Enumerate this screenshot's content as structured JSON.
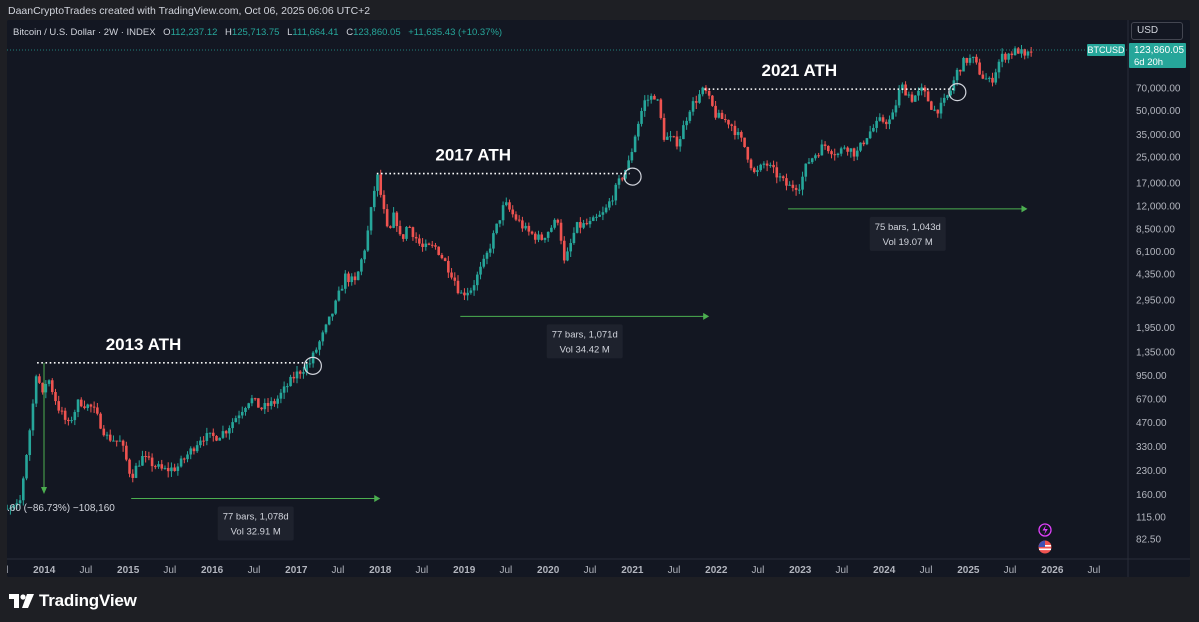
{
  "credit": "DaanCryptoTrades created with TradingView.com, Oct 06, 2025 06:06 UTC+2",
  "legend": {
    "symbol": "Bitcoin / U.S. Dollar · 2W · INDEX",
    "o_label": "O",
    "o_value": "112,237.12",
    "h_label": "H",
    "h_value": "125,713.75",
    "l_label": "L",
    "l_value": "111,664.41",
    "c_label": "C",
    "c_value": "123,860.05",
    "change": "+11,635.43 (+10.37%)"
  },
  "currency": "USD",
  "price_tag": {
    "symbol": "BTCUSD",
    "price": "123,860.05",
    "countdown": "6d 20h"
  },
  "colors": {
    "up": "#26a69a",
    "down": "#ef5350",
    "background": "#131722",
    "arrow": "#4caf50"
  },
  "branding": {
    "name": "TradingView",
    "icon": "tradingview-logo-icon"
  },
  "chart_data": {
    "type": "candlestick",
    "interval": "2W",
    "y_scale": "log",
    "ylim": [
      65,
      140000
    ],
    "y_ticks": [
      "123,860.05",
      "70,000.00",
      "50,000.00",
      "35,000.00",
      "25,000.00",
      "17,000.00",
      "12,000.00",
      "8,500.00",
      "6,100.00",
      "4,350.00",
      "2,950.00",
      "1,950.00",
      "1,350.00",
      "950.00",
      "670.00",
      "470.00",
      "330.00",
      "230.00",
      "160.00",
      "115.00",
      "82.50"
    ],
    "x_ticks": [
      "Jul",
      "2014",
      "Jul",
      "2015",
      "Jul",
      "2016",
      "Jul",
      "2017",
      "Jul",
      "2018",
      "Jul",
      "2019",
      "Jul",
      "2020",
      "Jul",
      "2021",
      "Jul",
      "2022",
      "Jul",
      "2023",
      "Jul",
      "2024",
      "Jul",
      "2025",
      "Jul",
      "2026",
      "Jul"
    ],
    "path": [
      [
        "2013-05-15",
        115
      ],
      [
        "2013-09-15",
        135
      ],
      [
        "2013-11-10",
        560
      ],
      [
        "2013-12-01",
        1150
      ],
      [
        "2013-12-20",
        650
      ],
      [
        "2014-01-15",
        950
      ],
      [
        "2014-03-01",
        600
      ],
      [
        "2014-04-15",
        450
      ],
      [
        "2014-06-01",
        650
      ],
      [
        "2014-08-01",
        580
      ],
      [
        "2014-10-01",
        380
      ],
      [
        "2014-12-01",
        350
      ],
      [
        "2015-01-14",
        210
      ],
      [
        "2015-03-01",
        280
      ],
      [
        "2015-06-01",
        230
      ],
      [
        "2015-08-01",
        240
      ],
      [
        "2015-10-01",
        310
      ],
      [
        "2015-11-15",
        380
      ],
      [
        "2016-01-15",
        380
      ],
      [
        "2016-03-01",
        420
      ],
      [
        "2016-06-15",
        680
      ],
      [
        "2016-08-01",
        580
      ],
      [
        "2016-10-01",
        640
      ],
      [
        "2016-12-25",
        950
      ],
      [
        "2017-03-01",
        1150
      ],
      [
        "2017-05-01",
        1800
      ],
      [
        "2017-06-15",
        2600
      ],
      [
        "2017-08-01",
        4200
      ],
      [
        "2017-09-15",
        3800
      ],
      [
        "2017-11-01",
        7000
      ],
      [
        "2017-12-17",
        19500
      ],
      [
        "2018-02-06",
        7500
      ],
      [
        "2018-03-05",
        11000
      ],
      [
        "2018-04-01",
        7000
      ],
      [
        "2018-05-01",
        9200
      ],
      [
        "2018-07-01",
        6400
      ],
      [
        "2018-09-01",
        6500
      ],
      [
        "2018-11-15",
        4200
      ],
      [
        "2018-12-15",
        3200
      ],
      [
        "2019-02-01",
        3500
      ],
      [
        "2019-04-01",
        5300
      ],
      [
        "2019-06-26",
        12500
      ],
      [
        "2019-08-01",
        10500
      ],
      [
        "2019-10-01",
        8200
      ],
      [
        "2019-12-01",
        7300
      ],
      [
        "2020-02-15",
        10000
      ],
      [
        "2020-03-12",
        5000
      ],
      [
        "2020-05-01",
        8800
      ],
      [
        "2020-07-01",
        9200
      ],
      [
        "2020-09-01",
        10800
      ],
      [
        "2020-11-15",
        18500
      ],
      [
        "2020-12-20",
        23500
      ],
      [
        "2021-01-15",
        36000
      ],
      [
        "2021-02-21",
        57000
      ],
      [
        "2021-04-14",
        64000
      ],
      [
        "2021-05-19",
        34000
      ],
      [
        "2021-07-20",
        31000
      ],
      [
        "2021-09-07",
        52000
      ],
      [
        "2021-11-10",
        69000
      ],
      [
        "2022-01-01",
        46000
      ],
      [
        "2022-03-01",
        42000
      ],
      [
        "2022-05-01",
        30000
      ],
      [
        "2022-06-18",
        19000
      ],
      [
        "2022-08-01",
        23000
      ],
      [
        "2022-11-09",
        16000
      ],
      [
        "2022-12-31",
        16500
      ],
      [
        "2023-02-01",
        23000
      ],
      [
        "2023-04-15",
        30000
      ],
      [
        "2023-06-15",
        26000
      ],
      [
        "2023-07-15",
        30000
      ],
      [
        "2023-09-01",
        26000
      ],
      [
        "2023-10-20",
        35000
      ],
      [
        "2023-12-15",
        43000
      ],
      [
        "2024-02-01",
        43000
      ],
      [
        "2024-03-14",
        73000
      ],
      [
        "2024-05-01",
        60000
      ],
      [
        "2024-06-15",
        68000
      ],
      [
        "2024-08-05",
        50000
      ],
      [
        "2024-09-06",
        53000
      ],
      [
        "2024-10-15",
        67000
      ],
      [
        "2024-11-15",
        91000
      ],
      [
        "2024-12-17",
        106000
      ],
      [
        "2025-01-20",
        108000
      ],
      [
        "2025-03-01",
        84000
      ],
      [
        "2025-04-08",
        76000
      ],
      [
        "2025-05-22",
        111000
      ],
      [
        "2025-07-14",
        120000
      ],
      [
        "2025-08-14",
        124000
      ],
      [
        "2025-09-01",
        108000
      ],
      [
        "2025-10-06",
        123860
      ]
    ],
    "annotations": [
      {
        "id": "ath2013",
        "label": "2013 ATH",
        "date": "2013-12-01",
        "price": 1150,
        "end": "2017-03-01"
      },
      {
        "id": "ath2017",
        "label": "2017 ATH",
        "date": "2017-12-17",
        "price": 19500,
        "end": "2020-12-20"
      },
      {
        "id": "ath2021",
        "label": "2021 ATH",
        "date": "2021-11-10",
        "price": 69000,
        "end": "2024-11-01"
      }
    ],
    "ranges": [
      {
        "id": "r2015",
        "start": "2015-01-14",
        "end": "2018-01-01",
        "bars": "77 bars, 1,078d",
        "vol": "Vol 32.91 M"
      },
      {
        "id": "r2018",
        "start": "2018-12-15",
        "end": "2021-12-01",
        "bars": "77 bars, 1,071d",
        "vol": "Vol 34.42 M"
      },
      {
        "id": "r2022",
        "start": "2022-11-09",
        "end": "2025-09-15",
        "bars": "75 bars, 1,043d",
        "vol": "Vol 19.07 M"
      }
    ],
    "drawdown_label": ".60 (−86.73%) −108,160"
  }
}
